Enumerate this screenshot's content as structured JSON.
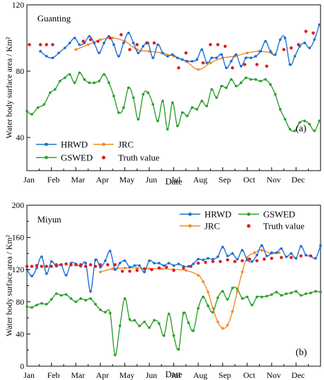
{
  "chart_data": [
    {
      "type": "line",
      "panel_letter": "(a)",
      "site_label": "Guanting",
      "xlabel": "Date",
      "ylabel": "Water body surface area  / Km²",
      "xlim": [
        1,
        13
      ],
      "ylim": [
        20,
        120
      ],
      "yticks": [
        40,
        80,
        120
      ],
      "categories": [
        "Jan",
        "Feb",
        "Mar",
        "Apr",
        "May",
        "Jun",
        "Jul",
        "Aug",
        "Sep",
        "Oct",
        "Nov",
        "Dec"
      ],
      "legend_position": "bottom-left",
      "series": [
        {
          "name": "HRWD",
          "color": "#1f6fd0",
          "marker": "circle",
          "line": true,
          "x": [
            1.55,
            1.8,
            2.05,
            2.3,
            2.55,
            2.75,
            2.95,
            3.15,
            3.35,
            3.55,
            3.75,
            3.95,
            4.15,
            4.35,
            4.55,
            4.75,
            4.95,
            5.15,
            5.35,
            5.55,
            5.75,
            5.95,
            6.15,
            6.35,
            6.55,
            6.75,
            6.95,
            7.15,
            7.35,
            7.55,
            7.75,
            7.95,
            8.15,
            8.35,
            8.55,
            8.75,
            8.95,
            9.15,
            9.35,
            9.55,
            9.75,
            9.95,
            10.15,
            10.35,
            10.55,
            10.75,
            10.95,
            11.15,
            11.35,
            11.55,
            11.75,
            11.95,
            12.15,
            12.35,
            12.55,
            12.75,
            12.95
          ],
          "y": [
            92,
            89,
            88,
            91,
            94,
            97,
            100,
            96,
            97,
            101,
            97,
            91,
            97,
            101,
            96,
            89,
            97,
            103,
            97,
            91,
            95,
            97,
            88,
            96,
            91,
            89,
            90,
            88,
            87,
            86,
            86,
            87,
            93,
            85,
            88,
            88,
            90,
            82,
            86,
            90,
            83,
            88,
            88,
            89,
            92,
            98,
            92,
            90,
            99,
            100,
            84,
            89,
            95,
            97,
            94,
            99,
            108
          ]
        },
        {
          "name": "GSWED",
          "color": "#2ca02c",
          "marker": "circle",
          "line": true,
          "x": [
            1.0,
            1.2,
            1.45,
            1.7,
            1.95,
            2.15,
            2.35,
            2.55,
            2.75,
            2.95,
            3.15,
            3.35,
            3.55,
            3.75,
            3.95,
            4.15,
            4.35,
            4.55,
            4.75,
            4.95,
            5.15,
            5.35,
            5.55,
            5.75,
            5.95,
            6.15,
            6.35,
            6.55,
            6.75,
            6.95,
            7.15,
            7.35,
            7.55,
            7.75,
            7.95,
            8.15,
            8.35,
            8.55,
            8.75,
            8.95,
            9.15,
            9.35,
            9.55,
            9.75,
            9.95,
            10.15,
            10.35,
            10.55,
            10.75,
            10.95,
            11.15,
            11.35,
            11.55,
            11.75,
            11.95,
            12.15,
            12.35,
            12.55,
            12.75,
            12.95
          ],
          "y": [
            56,
            54,
            58,
            60,
            67,
            69,
            74,
            76,
            78,
            73,
            79,
            75,
            73,
            73,
            74,
            78,
            73,
            65,
            55,
            58,
            70,
            64,
            51,
            66,
            67,
            60,
            50,
            62,
            45,
            61,
            47,
            55,
            53,
            58,
            57,
            62,
            59,
            69,
            64,
            71,
            70,
            75,
            71,
            73,
            76,
            75,
            75,
            74,
            75,
            72,
            66,
            57,
            51,
            45,
            44,
            49,
            50,
            48,
            44,
            50
          ]
        },
        {
          "name": "JRC",
          "color": "#f08a24",
          "marker": "circle",
          "line": true,
          "x": [
            3.0,
            3.5,
            4.0,
            4.5,
            5.0,
            5.5,
            6.0,
            6.5,
            7.0,
            7.5,
            8.0,
            8.5,
            9.0,
            9.5,
            10.0,
            10.5,
            11.0
          ],
          "y": [
            93,
            96,
            99,
            100,
            98,
            93,
            92,
            91,
            89,
            86,
            81,
            85,
            88,
            89,
            91,
            92,
            91
          ]
        },
        {
          "name": "Truth value",
          "color": "#dd1f1f",
          "marker": "circle",
          "line": false,
          "x": [
            1.1,
            1.55,
            1.8,
            2.05,
            3.3,
            3.6,
            3.9,
            4.4,
            4.85,
            5.2,
            5.5,
            5.9,
            6.2,
            7.2,
            7.5,
            8.2,
            8.5,
            8.8,
            9.1,
            9.4,
            9.9,
            10.4,
            10.8,
            11.5,
            11.8,
            12.1,
            12.4,
            12.7
          ],
          "y": [
            96,
            96,
            96,
            96,
            98,
            99,
            98,
            100,
            102,
            93,
            96,
            97,
            97,
            82,
            91,
            85,
            96,
            96,
            95,
            82,
            84,
            84,
            83,
            93,
            94,
            96,
            104,
            103
          ]
        }
      ]
    },
    {
      "type": "line",
      "panel_letter": "(b)",
      "site_label": "Miyun",
      "xlabel": "Date",
      "ylabel": "Water body surface area  / Km²",
      "xlim": [
        1,
        13
      ],
      "ylim": [
        0,
        200
      ],
      "yticks": [
        0,
        40,
        80,
        120,
        160,
        200
      ],
      "categories": [
        "Jan",
        "Feb",
        "Mar",
        "Apr",
        "May",
        "Jun",
        "Jul",
        "Aug",
        "Sep",
        "Oct",
        "Nov",
        "Dec"
      ],
      "legend_position": "top-right",
      "series": [
        {
          "name": "HRWD",
          "color": "#1f6fd0",
          "marker": "circle",
          "line": true,
          "x": [
            1.0,
            1.2,
            1.4,
            1.6,
            1.8,
            2.0,
            2.2,
            2.4,
            2.6,
            2.8,
            3.0,
            3.2,
            3.4,
            3.6,
            3.8,
            4.0,
            4.2,
            4.4,
            4.6,
            4.8,
            5.0,
            5.2,
            5.4,
            5.6,
            5.8,
            6.0,
            6.2,
            6.4,
            6.6,
            6.8,
            7.0,
            7.2,
            7.4,
            7.6,
            7.8,
            8.0,
            8.2,
            8.4,
            8.6,
            8.8,
            9.0,
            9.2,
            9.4,
            9.6,
            9.8,
            10.0,
            10.2,
            10.4,
            10.6,
            10.8,
            11.0,
            11.2,
            11.4,
            11.6,
            11.8,
            12.0,
            12.2,
            12.4,
            12.6,
            12.8,
            13.0
          ],
          "y": [
            120,
            112,
            122,
            136,
            115,
            130,
            124,
            126,
            113,
            128,
            127,
            124,
            128,
            93,
            132,
            123,
            131,
            143,
            120,
            128,
            131,
            123,
            125,
            125,
            117,
            131,
            128,
            128,
            125,
            128,
            125,
            127,
            124,
            124,
            127,
            133,
            132,
            134,
            133,
            136,
            148,
            137,
            140,
            133,
            144,
            132,
            130,
            138,
            150,
            137,
            141,
            141,
            146,
            136,
            140,
            134,
            149,
            138,
            137,
            134,
            150
          ]
        },
        {
          "name": "GSWED",
          "color": "#2ca02c",
          "marker": "circle",
          "line": true,
          "x": [
            1.0,
            1.2,
            1.4,
            1.6,
            1.8,
            2.0,
            2.2,
            2.4,
            2.6,
            2.8,
            3.0,
            3.2,
            3.4,
            3.6,
            3.8,
            4.0,
            4.2,
            4.4,
            4.6,
            4.8,
            5.0,
            5.2,
            5.4,
            5.6,
            5.8,
            6.0,
            6.2,
            6.4,
            6.6,
            6.8,
            7.0,
            7.2,
            7.4,
            7.6,
            7.8,
            8.0,
            8.2,
            8.4,
            8.6,
            8.8,
            9.0,
            9.2,
            9.4,
            9.6,
            9.8,
            10.0,
            10.2,
            10.4,
            10.6,
            10.8,
            11.0,
            11.2,
            11.4,
            11.6,
            11.8,
            12.0,
            12.2,
            12.4,
            12.6,
            12.8,
            13.0
          ],
          "y": [
            74,
            73,
            76,
            78,
            77,
            83,
            90,
            88,
            89,
            84,
            80,
            84,
            82,
            84,
            77,
            70,
            67,
            66,
            14,
            50,
            84,
            58,
            57,
            50,
            55,
            48,
            57,
            53,
            38,
            65,
            38,
            21,
            66,
            54,
            44,
            72,
            86,
            75,
            67,
            85,
            93,
            83,
            97,
            96,
            84,
            86,
            76,
            86,
            86,
            87,
            89,
            92,
            88,
            90,
            91,
            93,
            88,
            90,
            91,
            93,
            92
          ]
        },
        {
          "name": "JRC",
          "color": "#f08a24",
          "marker": "circle",
          "line": true,
          "x": [
            4.0,
            4.5,
            5.0,
            5.5,
            6.0,
            6.5,
            7.0,
            7.5,
            8.0,
            8.2,
            8.4,
            8.6,
            8.8,
            9.0,
            9.2,
            9.4,
            9.6,
            9.8,
            10.0,
            10.3,
            10.6,
            11.0,
            11.3
          ],
          "y": [
            117,
            121,
            122,
            122,
            121,
            121,
            120,
            119,
            113,
            105,
            92,
            72,
            55,
            47,
            51,
            68,
            93,
            117,
            135,
            141,
            144,
            140,
            141
          ]
        },
        {
          "name": "Truth value",
          "color": "#dd1f1f",
          "marker": "circle",
          "line": false,
          "x": [
            1.0,
            1.2,
            1.4,
            1.6,
            1.8,
            2.0,
            2.2,
            2.4,
            2.6,
            2.8,
            3.0,
            3.2,
            3.4,
            3.6,
            3.8,
            4.0,
            4.3,
            4.6,
            4.9,
            5.2,
            5.5,
            5.8,
            6.1,
            6.4,
            6.7,
            7.0,
            7.4,
            7.7,
            8.0,
            8.3,
            8.6,
            8.9,
            9.2,
            9.5,
            9.8,
            10.1,
            10.4,
            10.7,
            11.0,
            11.4,
            11.8,
            12.2,
            12.6
          ],
          "y": [
            124,
            124,
            125,
            124,
            124,
            124,
            126,
            126,
            127,
            126,
            126,
            126,
            124,
            126,
            124,
            126,
            126,
            126,
            118,
            118,
            119,
            121,
            120,
            122,
            123,
            119,
            122,
            124,
            128,
            129,
            130,
            130,
            132,
            130,
            131,
            133,
            131,
            133,
            134,
            135,
            135,
            137,
            137
          ]
        }
      ]
    }
  ]
}
